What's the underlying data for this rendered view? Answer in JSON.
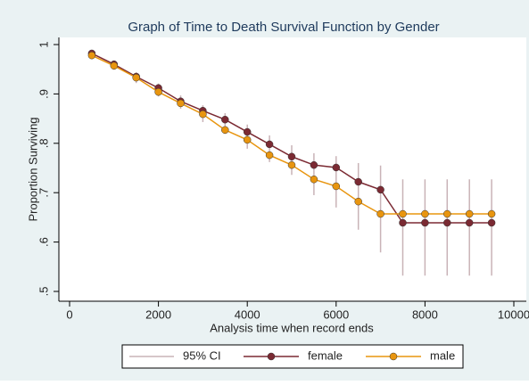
{
  "chart_data": {
    "type": "line",
    "title": "Graph of Time to Death Survival Function by Gender",
    "x_label": "Analysis time when record ends",
    "y_label": "Proportion Surviving",
    "x": [
      500,
      1000,
      1500,
      2000,
      2500,
      3000,
      3500,
      4000,
      4500,
      5000,
      5500,
      6000,
      6500,
      7000,
      7500,
      8000,
      8500,
      9000,
      9500
    ],
    "ci": {
      "name": "95% CI",
      "color": "#c9b3b7",
      "lower": [
        0.971,
        0.949,
        0.922,
        0.895,
        0.87,
        0.843,
        0.819,
        0.789,
        0.762,
        0.736,
        0.695,
        0.67,
        0.625,
        0.579,
        0.532,
        0.532,
        0.532,
        0.532,
        0.532
      ],
      "upper": [
        0.987,
        0.968,
        0.944,
        0.921,
        0.897,
        0.877,
        0.861,
        0.838,
        0.816,
        0.796,
        0.78,
        0.774,
        0.76,
        0.755,
        0.727,
        0.727,
        0.727,
        0.727,
        0.727
      ]
    },
    "series": [
      {
        "name": "female",
        "color": "#7b2a33",
        "values": [
          0.982,
          0.96,
          0.935,
          0.912,
          0.885,
          0.866,
          0.848,
          0.823,
          0.798,
          0.773,
          0.756,
          0.751,
          0.722,
          0.706,
          0.639,
          0.639,
          0.639,
          0.639,
          0.639
        ]
      },
      {
        "name": "male",
        "color": "#e8950f",
        "values": [
          0.978,
          0.957,
          0.933,
          0.904,
          0.881,
          0.859,
          0.827,
          0.807,
          0.776,
          0.756,
          0.727,
          0.713,
          0.682,
          0.657,
          0.657,
          0.657,
          0.657,
          0.657,
          0.657
        ]
      }
    ],
    "xlim": [
      0,
      10000
    ],
    "xticks": [
      0,
      2000,
      4000,
      6000,
      8000,
      10000
    ],
    "ylim": [
      0.5,
      1
    ],
    "yticks": [
      {
        "value": 0.5,
        "label": ".5"
      },
      {
        "value": 0.6,
        "label": ".6"
      },
      {
        "value": 0.7,
        "label": ".7"
      },
      {
        "value": 0.8,
        "label": ".8"
      },
      {
        "value": 0.9,
        "label": ".9"
      },
      1
    ],
    "grid": false
  }
}
